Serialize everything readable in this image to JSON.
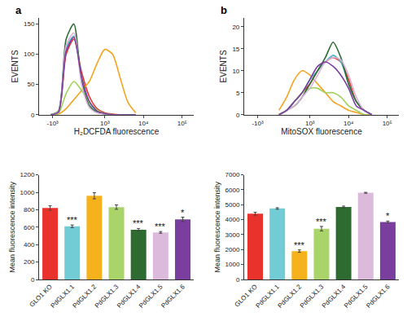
{
  "panel_labels": [
    "a",
    "b"
  ],
  "chart_data": [
    {
      "type": "line",
      "x_title": "H₂DCFDA fluorescence",
      "y_title": "EVENTS",
      "x": [
        1.6,
        1.8,
        2.0,
        2.2,
        2.4,
        2.6,
        2.8,
        3.0,
        3.2,
        3.4,
        3.6,
        3.8
      ],
      "series": [
        {
          "color": "#e8322b",
          "values": [
            0,
            4,
            100,
            125,
            70,
            30,
            10,
            3,
            1,
            0,
            0,
            0
          ]
        },
        {
          "color": "#4fb8c9",
          "values": [
            0,
            5,
            110,
            130,
            60,
            20,
            5,
            1,
            0,
            0,
            0,
            0
          ]
        },
        {
          "color": "#f5a21c",
          "values": [
            0,
            1,
            10,
            25,
            40,
            55,
            85,
            108,
            100,
            60,
            20,
            3
          ]
        },
        {
          "color": "#9fd05a",
          "values": [
            0,
            2,
            35,
            55,
            40,
            20,
            8,
            2,
            0,
            0,
            0,
            0
          ]
        },
        {
          "color": "#2e6b30",
          "values": [
            0,
            6,
            125,
            150,
            55,
            15,
            4,
            1,
            0,
            0,
            0,
            0
          ]
        },
        {
          "color": "#d9b3da",
          "values": [
            0,
            5,
            115,
            135,
            50,
            12,
            3,
            1,
            0,
            0,
            0,
            0
          ]
        },
        {
          "color": "#7a3f9e",
          "values": [
            0,
            4,
            105,
            128,
            62,
            22,
            6,
            2,
            0,
            0,
            0,
            0
          ]
        }
      ],
      "xlim": [
        1.3,
        5.3
      ],
      "xticks": [
        {
          "value": 1.65,
          "label": "-10³"
        },
        {
          "value": 3,
          "label": "10³"
        },
        {
          "value": 4,
          "label": "10⁴"
        },
        {
          "value": 5,
          "label": "10⁵"
        }
      ],
      "ylim": [
        0,
        160
      ],
      "yticks": [
        0,
        50,
        100,
        150
      ],
      "grid": false
    },
    {
      "type": "line",
      "x_title": "MitoSOX fluorescence",
      "y_title": "EVENTS",
      "x": [
        2.2,
        2.4,
        2.6,
        2.8,
        3.0,
        3.2,
        3.4,
        3.6,
        3.8,
        4.0,
        4.2,
        4.4,
        4.6
      ],
      "series": [
        {
          "color": "#e8322b",
          "values": [
            0,
            1,
            3,
            5,
            7,
            10,
            12,
            13,
            12,
            8,
            3,
            1,
            0
          ]
        },
        {
          "color": "#4fb8c9",
          "values": [
            0,
            1,
            3,
            5,
            8,
            10,
            12,
            13.5,
            12,
            7,
            3,
            1,
            0
          ]
        },
        {
          "color": "#f5a21c",
          "values": [
            1,
            4,
            8,
            10,
            9,
            7,
            5,
            3,
            2,
            1,
            0.5,
            0,
            0
          ]
        },
        {
          "color": "#9fd05a",
          "values": [
            0,
            1,
            3,
            5,
            6,
            6,
            5,
            5,
            4,
            2,
            1,
            0,
            0
          ]
        },
        {
          "color": "#2e6b30",
          "values": [
            0,
            1,
            2,
            4,
            7,
            10,
            13,
            16.5,
            13,
            7,
            3,
            1,
            0
          ]
        },
        {
          "color": "#d9b3da",
          "values": [
            0,
            1,
            2,
            4,
            6,
            9,
            12,
            13,
            12.5,
            9,
            4,
            1,
            0
          ]
        },
        {
          "color": "#7a3f9e",
          "values": [
            0,
            1,
            3,
            5,
            8,
            11,
            12,
            11,
            9,
            6,
            2,
            1,
            0
          ]
        }
      ],
      "xlim": [
        1.3,
        5.3
      ],
      "xticks": [
        {
          "value": 1.65,
          "label": "-10³"
        },
        {
          "value": 3,
          "label": "10³"
        },
        {
          "value": 4,
          "label": "10⁴"
        },
        {
          "value": 5,
          "label": "10⁵"
        }
      ],
      "ylim": [
        0,
        22
      ],
      "yticks": [
        0,
        5,
        10,
        15,
        20
      ],
      "grid": false
    },
    {
      "type": "bar",
      "y_title": "Mean fluorescence intensity",
      "categories": [
        "GLO1 KO",
        "PdGLX1.1",
        "PdGLX1.2",
        "PdGLX1.3",
        "PdGLX1.4",
        "PdGLX1.5",
        "PdGLX1.6"
      ],
      "values": [
        820,
        610,
        960,
        830,
        570,
        540,
        690
      ],
      "errors": [
        25,
        15,
        35,
        25,
        15,
        10,
        25
      ],
      "colors": [
        "#e8322b",
        "#72ccd6",
        "#f5b21c",
        "#a9d46a",
        "#2e6b30",
        "#dcbadc",
        "#7a3f9e"
      ],
      "annotations": [
        {
          "category": "PdGLX1.1",
          "text": "***"
        },
        {
          "category": "PdGLX1.4",
          "text": "***"
        },
        {
          "category": "PdGLX1.5",
          "text": "***"
        },
        {
          "category": "PdGLX1.6",
          "text": "*"
        }
      ],
      "ylim": [
        0,
        1200
      ],
      "yticks": [
        0,
        200,
        400,
        600,
        800,
        1000,
        1200
      ],
      "grid": false
    },
    {
      "type": "bar",
      "y_title": "Mean fluorescence intensity",
      "categories": [
        "GLO1 KO",
        "PdGLX1.1",
        "PdGLX1.2",
        "PdGLX1.3",
        "PdGLX1.4",
        "PdGLX1.5",
        "PdGLX1.6"
      ],
      "values": [
        4400,
        4750,
        1900,
        3400,
        4850,
        5800,
        3850
      ],
      "errors": [
        100,
        50,
        80,
        150,
        60,
        30,
        60
      ],
      "colors": [
        "#e8322b",
        "#72ccd6",
        "#f5b21c",
        "#a9d46a",
        "#2e6b30",
        "#dcbadc",
        "#7a3f9e"
      ],
      "annotations": [
        {
          "category": "PdGLX1.2",
          "text": "***"
        },
        {
          "category": "PdGLX1.3",
          "text": "***"
        },
        {
          "category": "PdGLX1.6",
          "text": "*"
        }
      ],
      "ylim": [
        0,
        7000
      ],
      "yticks": [
        0,
        1000,
        2000,
        3000,
        4000,
        5000,
        6000,
        7000
      ],
      "grid": false
    }
  ]
}
